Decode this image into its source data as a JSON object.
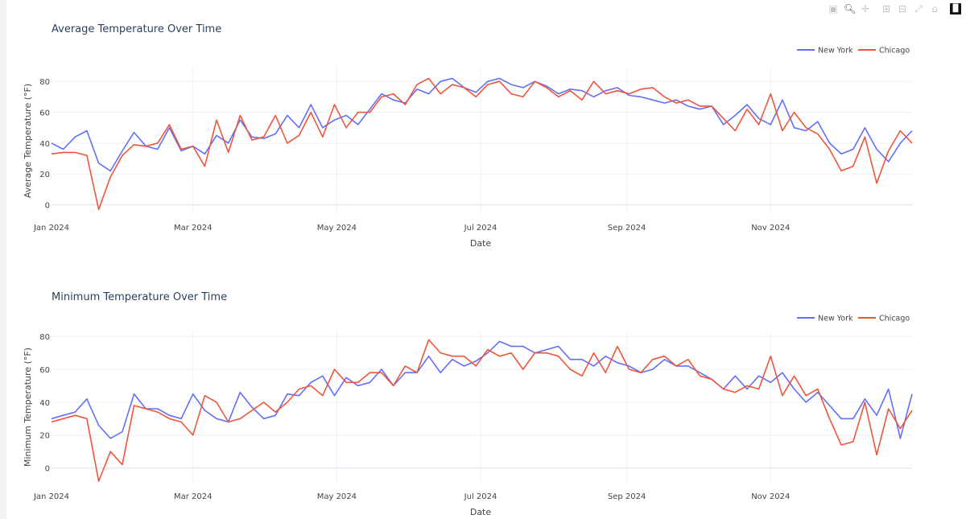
{
  "modebar": {
    "icons": [
      "camera-icon",
      "zoom-icon",
      "pan-icon",
      "zoom-in-icon",
      "zoom-out-icon",
      "autoscale-icon",
      "home-icon",
      "plotly-logo-icon"
    ]
  },
  "colors": {
    "New York": "#636efa",
    "Chicago": "#EF553B",
    "grid": "#ebf0f8"
  },
  "x_dates": [
    "2024-01-01",
    "2024-01-06",
    "2024-01-11",
    "2024-01-16",
    "2024-01-21",
    "2024-01-26",
    "2024-01-31",
    "2024-02-05",
    "2024-02-10",
    "2024-02-15",
    "2024-02-20",
    "2024-02-25",
    "2024-03-01",
    "2024-03-06",
    "2024-03-11",
    "2024-03-16",
    "2024-03-21",
    "2024-03-26",
    "2024-03-31",
    "2024-04-05",
    "2024-04-10",
    "2024-04-15",
    "2024-04-20",
    "2024-04-25",
    "2024-04-30",
    "2024-05-05",
    "2024-05-10",
    "2024-05-15",
    "2024-05-20",
    "2024-05-25",
    "2024-05-30",
    "2024-06-04",
    "2024-06-09",
    "2024-06-14",
    "2024-06-19",
    "2024-06-24",
    "2024-06-29",
    "2024-07-04",
    "2024-07-09",
    "2024-07-14",
    "2024-07-19",
    "2024-07-24",
    "2024-07-29",
    "2024-08-03",
    "2024-08-08",
    "2024-08-13",
    "2024-08-18",
    "2024-08-23",
    "2024-08-28",
    "2024-09-02",
    "2024-09-07",
    "2024-09-12",
    "2024-09-17",
    "2024-09-22",
    "2024-09-27",
    "2024-10-02",
    "2024-10-07",
    "2024-10-12",
    "2024-10-17",
    "2024-10-22",
    "2024-10-27",
    "2024-11-01",
    "2024-11-06",
    "2024-11-11",
    "2024-11-16",
    "2024-11-21",
    "2024-11-26",
    "2024-12-01",
    "2024-12-06",
    "2024-12-11",
    "2024-12-16",
    "2024-12-21",
    "2024-12-26",
    "2024-12-31"
  ],
  "chart_data": [
    {
      "type": "line",
      "title": "Average Temperature Over Time",
      "xlabel": "Date",
      "ylabel": "Average Temperature (°F)",
      "xlim": [
        "2024-01-01",
        "2024-12-31"
      ],
      "ylim": [
        -6,
        89
      ],
      "x_ticks": [
        {
          "date": "2024-01-01",
          "label": "Jan 2024"
        },
        {
          "date": "2024-03-01",
          "label": "Mar 2024"
        },
        {
          "date": "2024-05-01",
          "label": "May 2024"
        },
        {
          "date": "2024-07-01",
          "label": "Jul 2024"
        },
        {
          "date": "2024-09-01",
          "label": "Sep 2024"
        },
        {
          "date": "2024-11-01",
          "label": "Nov 2024"
        }
      ],
      "y_ticks": [
        0,
        20,
        40,
        60,
        80
      ],
      "grid": true,
      "legend": "top-right",
      "series": [
        {
          "name": "New York",
          "values": [
            40,
            36,
            44,
            48,
            27,
            22,
            35,
            47,
            38,
            36,
            50,
            35,
            38,
            33,
            45,
            40,
            55,
            44,
            43,
            46,
            58,
            50,
            65,
            50,
            55,
            58,
            52,
            62,
            72,
            68,
            66,
            75,
            72,
            80,
            82,
            76,
            73,
            80,
            82,
            78,
            76,
            80,
            77,
            72,
            75,
            74,
            70,
            74,
            76,
            71,
            70,
            68,
            66,
            68,
            64,
            62,
            64,
            52,
            58,
            65,
            56,
            52,
            68,
            50,
            48,
            54,
            40,
            33,
            36,
            50,
            36,
            28,
            40,
            48
          ]
        },
        {
          "name": "Chicago",
          "values": [
            33,
            34,
            34,
            32,
            -3,
            18,
            32,
            39,
            38,
            40,
            52,
            36,
            38,
            25,
            55,
            34,
            58,
            42,
            44,
            58,
            40,
            45,
            60,
            44,
            65,
            50,
            60,
            60,
            70,
            72,
            65,
            78,
            82,
            72,
            78,
            76,
            70,
            78,
            80,
            72,
            70,
            80,
            76,
            70,
            74,
            68,
            80,
            72,
            74,
            72,
            75,
            76,
            70,
            66,
            68,
            64,
            64,
            56,
            48,
            62,
            52,
            72,
            48,
            60,
            50,
            46,
            36,
            22,
            25,
            44,
            14,
            35,
            48,
            40
          ]
        }
      ]
    },
    {
      "type": "line",
      "title": "Minimum Temperature Over Time",
      "xlabel": "Date",
      "ylabel": "Minimum Temperature (°F)",
      "xlim": [
        "2024-01-01",
        "2024-12-31"
      ],
      "ylim": [
        -9,
        83
      ],
      "x_ticks": [
        {
          "date": "2024-01-01",
          "label": "Jan 2024"
        },
        {
          "date": "2024-03-01",
          "label": "Mar 2024"
        },
        {
          "date": "2024-05-01",
          "label": "May 2024"
        },
        {
          "date": "2024-07-01",
          "label": "Jul 2024"
        },
        {
          "date": "2024-09-01",
          "label": "Sep 2024"
        },
        {
          "date": "2024-11-01",
          "label": "Nov 2024"
        }
      ],
      "y_ticks": [
        0,
        20,
        40,
        60,
        80
      ],
      "grid": true,
      "legend": "top-right",
      "series": [
        {
          "name": "New York",
          "values": [
            30,
            32,
            34,
            42,
            26,
            18,
            22,
            45,
            36,
            36,
            32,
            30,
            45,
            35,
            30,
            28,
            46,
            37,
            30,
            32,
            45,
            44,
            52,
            56,
            44,
            55,
            50,
            52,
            60,
            50,
            58,
            58,
            68,
            58,
            66,
            62,
            65,
            70,
            77,
            74,
            74,
            70,
            72,
            74,
            66,
            66,
            62,
            68,
            64,
            62,
            58,
            60,
            66,
            62,
            62,
            58,
            54,
            48,
            56,
            48,
            56,
            52,
            58,
            48,
            40,
            46,
            38,
            30,
            30,
            42,
            32,
            48,
            18,
            45
          ]
        },
        {
          "name": "Chicago",
          "values": [
            28,
            30,
            32,
            30,
            -8,
            10,
            2,
            38,
            36,
            34,
            30,
            28,
            20,
            44,
            40,
            28,
            30,
            35,
            40,
            34,
            40,
            48,
            50,
            44,
            60,
            52,
            52,
            58,
            58,
            50,
            62,
            58,
            78,
            70,
            68,
            68,
            62,
            72,
            68,
            70,
            60,
            70,
            70,
            68,
            60,
            56,
            70,
            58,
            74,
            60,
            58,
            66,
            68,
            62,
            66,
            56,
            54,
            48,
            46,
            50,
            48,
            68,
            44,
            56,
            44,
            48,
            30,
            14,
            16,
            40,
            8,
            36,
            24,
            35
          ]
        }
      ]
    }
  ]
}
